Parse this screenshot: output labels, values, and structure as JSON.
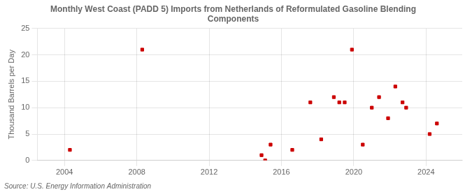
{
  "chart_data": {
    "type": "scatter",
    "title": "Monthly West Coast (PADD 5) Imports from Netherlands of Reformulated Gasoline Blending\nComponents",
    "y_label": "Thousand Barrels per Day",
    "source": "Source: U.S. Energy Information Administration",
    "x": [
      2004.3,
      2008.3,
      2014.9,
      2015.1,
      2015.4,
      2016.6,
      2017.6,
      2018.2,
      2018.9,
      2019.2,
      2019.5,
      2019.9,
      2020.5,
      2021.0,
      2021.4,
      2021.9,
      2022.3,
      2022.7,
      2022.9,
      2024.2,
      2024.6
    ],
    "values": [
      2,
      21,
      1,
      0,
      3,
      2,
      11,
      4,
      12,
      11,
      11,
      21,
      3,
      10,
      12,
      8,
      14,
      11,
      10,
      5,
      7
    ],
    "color": "#cc0000",
    "marker": "square",
    "xlim": [
      2002.5,
      2026
    ],
    "xticks": [
      2004,
      2008,
      2012,
      2016,
      2020,
      2024
    ],
    "ylim": [
      0,
      25
    ],
    "yticks": [
      0,
      5,
      10,
      15,
      20,
      25
    ],
    "grid": true
  }
}
